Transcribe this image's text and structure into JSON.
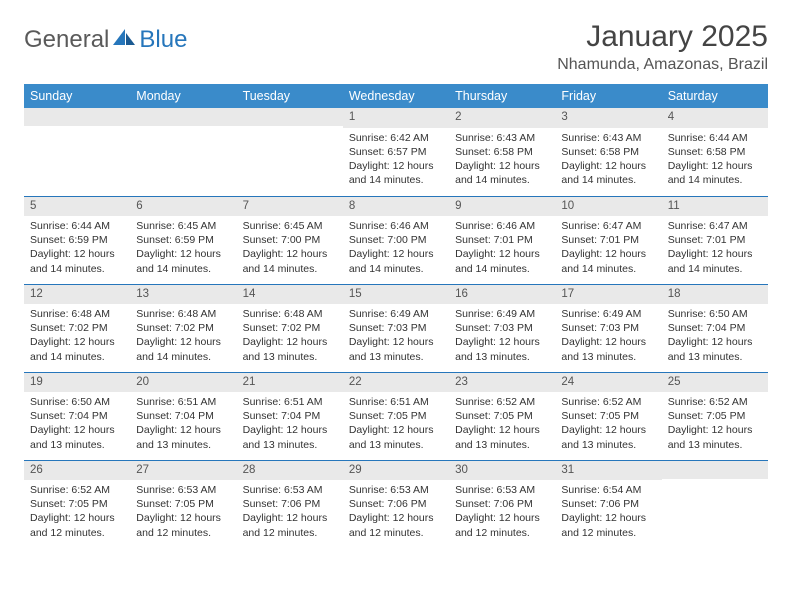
{
  "brand": {
    "part1": "General",
    "part2": "Blue"
  },
  "title": "January 2025",
  "location": "Nhamunda, Amazonas, Brazil",
  "colors": {
    "header_bg": "#3a8bca",
    "rule": "#2676bb",
    "daynum_bg": "#e9e9e9",
    "text": "#333333",
    "logo_gray": "#5a5a5a",
    "logo_blue": "#2676bb",
    "page_bg": "#ffffff"
  },
  "typography": {
    "title_fontsize": 30,
    "location_fontsize": 16,
    "weekday_fontsize": 12.5,
    "daynum_fontsize": 11.5,
    "body_fontsize": 10.5,
    "font_family": "Arial"
  },
  "weekdays": [
    "Sunday",
    "Monday",
    "Tuesday",
    "Wednesday",
    "Thursday",
    "Friday",
    "Saturday"
  ],
  "weeks": [
    [
      {
        "day": "",
        "sunrise": "",
        "sunset": "",
        "daylight": ""
      },
      {
        "day": "",
        "sunrise": "",
        "sunset": "",
        "daylight": ""
      },
      {
        "day": "",
        "sunrise": "",
        "sunset": "",
        "daylight": ""
      },
      {
        "day": "1",
        "sunrise": "Sunrise: 6:42 AM",
        "sunset": "Sunset: 6:57 PM",
        "daylight": "Daylight: 12 hours and 14 minutes."
      },
      {
        "day": "2",
        "sunrise": "Sunrise: 6:43 AM",
        "sunset": "Sunset: 6:58 PM",
        "daylight": "Daylight: 12 hours and 14 minutes."
      },
      {
        "day": "3",
        "sunrise": "Sunrise: 6:43 AM",
        "sunset": "Sunset: 6:58 PM",
        "daylight": "Daylight: 12 hours and 14 minutes."
      },
      {
        "day": "4",
        "sunrise": "Sunrise: 6:44 AM",
        "sunset": "Sunset: 6:58 PM",
        "daylight": "Daylight: 12 hours and 14 minutes."
      }
    ],
    [
      {
        "day": "5",
        "sunrise": "Sunrise: 6:44 AM",
        "sunset": "Sunset: 6:59 PM",
        "daylight": "Daylight: 12 hours and 14 minutes."
      },
      {
        "day": "6",
        "sunrise": "Sunrise: 6:45 AM",
        "sunset": "Sunset: 6:59 PM",
        "daylight": "Daylight: 12 hours and 14 minutes."
      },
      {
        "day": "7",
        "sunrise": "Sunrise: 6:45 AM",
        "sunset": "Sunset: 7:00 PM",
        "daylight": "Daylight: 12 hours and 14 minutes."
      },
      {
        "day": "8",
        "sunrise": "Sunrise: 6:46 AM",
        "sunset": "Sunset: 7:00 PM",
        "daylight": "Daylight: 12 hours and 14 minutes."
      },
      {
        "day": "9",
        "sunrise": "Sunrise: 6:46 AM",
        "sunset": "Sunset: 7:01 PM",
        "daylight": "Daylight: 12 hours and 14 minutes."
      },
      {
        "day": "10",
        "sunrise": "Sunrise: 6:47 AM",
        "sunset": "Sunset: 7:01 PM",
        "daylight": "Daylight: 12 hours and 14 minutes."
      },
      {
        "day": "11",
        "sunrise": "Sunrise: 6:47 AM",
        "sunset": "Sunset: 7:01 PM",
        "daylight": "Daylight: 12 hours and 14 minutes."
      }
    ],
    [
      {
        "day": "12",
        "sunrise": "Sunrise: 6:48 AM",
        "sunset": "Sunset: 7:02 PM",
        "daylight": "Daylight: 12 hours and 14 minutes."
      },
      {
        "day": "13",
        "sunrise": "Sunrise: 6:48 AM",
        "sunset": "Sunset: 7:02 PM",
        "daylight": "Daylight: 12 hours and 14 minutes."
      },
      {
        "day": "14",
        "sunrise": "Sunrise: 6:48 AM",
        "sunset": "Sunset: 7:02 PM",
        "daylight": "Daylight: 12 hours and 13 minutes."
      },
      {
        "day": "15",
        "sunrise": "Sunrise: 6:49 AM",
        "sunset": "Sunset: 7:03 PM",
        "daylight": "Daylight: 12 hours and 13 minutes."
      },
      {
        "day": "16",
        "sunrise": "Sunrise: 6:49 AM",
        "sunset": "Sunset: 7:03 PM",
        "daylight": "Daylight: 12 hours and 13 minutes."
      },
      {
        "day": "17",
        "sunrise": "Sunrise: 6:49 AM",
        "sunset": "Sunset: 7:03 PM",
        "daylight": "Daylight: 12 hours and 13 minutes."
      },
      {
        "day": "18",
        "sunrise": "Sunrise: 6:50 AM",
        "sunset": "Sunset: 7:04 PM",
        "daylight": "Daylight: 12 hours and 13 minutes."
      }
    ],
    [
      {
        "day": "19",
        "sunrise": "Sunrise: 6:50 AM",
        "sunset": "Sunset: 7:04 PM",
        "daylight": "Daylight: 12 hours and 13 minutes."
      },
      {
        "day": "20",
        "sunrise": "Sunrise: 6:51 AM",
        "sunset": "Sunset: 7:04 PM",
        "daylight": "Daylight: 12 hours and 13 minutes."
      },
      {
        "day": "21",
        "sunrise": "Sunrise: 6:51 AM",
        "sunset": "Sunset: 7:04 PM",
        "daylight": "Daylight: 12 hours and 13 minutes."
      },
      {
        "day": "22",
        "sunrise": "Sunrise: 6:51 AM",
        "sunset": "Sunset: 7:05 PM",
        "daylight": "Daylight: 12 hours and 13 minutes."
      },
      {
        "day": "23",
        "sunrise": "Sunrise: 6:52 AM",
        "sunset": "Sunset: 7:05 PM",
        "daylight": "Daylight: 12 hours and 13 minutes."
      },
      {
        "day": "24",
        "sunrise": "Sunrise: 6:52 AM",
        "sunset": "Sunset: 7:05 PM",
        "daylight": "Daylight: 12 hours and 13 minutes."
      },
      {
        "day": "25",
        "sunrise": "Sunrise: 6:52 AM",
        "sunset": "Sunset: 7:05 PM",
        "daylight": "Daylight: 12 hours and 13 minutes."
      }
    ],
    [
      {
        "day": "26",
        "sunrise": "Sunrise: 6:52 AM",
        "sunset": "Sunset: 7:05 PM",
        "daylight": "Daylight: 12 hours and 12 minutes."
      },
      {
        "day": "27",
        "sunrise": "Sunrise: 6:53 AM",
        "sunset": "Sunset: 7:05 PM",
        "daylight": "Daylight: 12 hours and 12 minutes."
      },
      {
        "day": "28",
        "sunrise": "Sunrise: 6:53 AM",
        "sunset": "Sunset: 7:06 PM",
        "daylight": "Daylight: 12 hours and 12 minutes."
      },
      {
        "day": "29",
        "sunrise": "Sunrise: 6:53 AM",
        "sunset": "Sunset: 7:06 PM",
        "daylight": "Daylight: 12 hours and 12 minutes."
      },
      {
        "day": "30",
        "sunrise": "Sunrise: 6:53 AM",
        "sunset": "Sunset: 7:06 PM",
        "daylight": "Daylight: 12 hours and 12 minutes."
      },
      {
        "day": "31",
        "sunrise": "Sunrise: 6:54 AM",
        "sunset": "Sunset: 7:06 PM",
        "daylight": "Daylight: 12 hours and 12 minutes."
      },
      {
        "day": "",
        "sunrise": "",
        "sunset": "",
        "daylight": ""
      }
    ]
  ]
}
